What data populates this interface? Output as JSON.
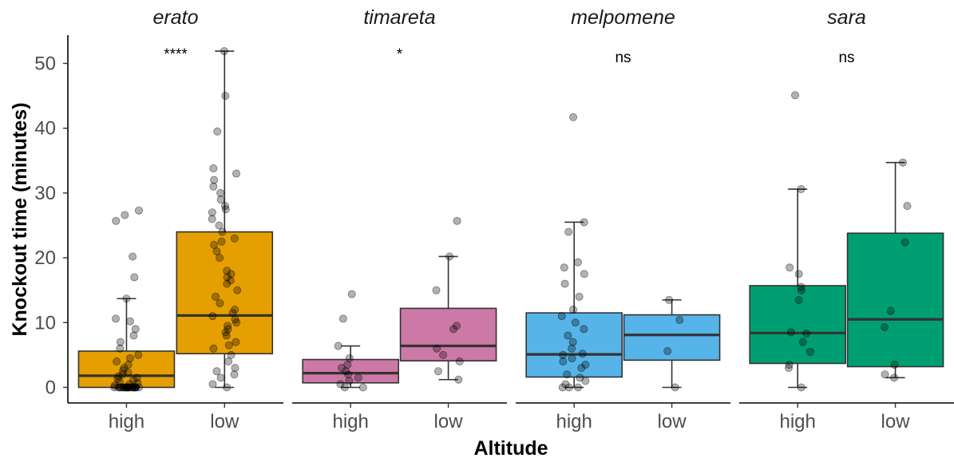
{
  "chart_data": {
    "type": "boxplot",
    "xlabel": "Altitude",
    "ylabel": "Knockout time (minutes)",
    "ylim": [
      -2.5,
      54
    ],
    "yticks": [
      0,
      10,
      20,
      30,
      40,
      50
    ],
    "categories": [
      "high",
      "low"
    ],
    "grid": false,
    "legend": "none",
    "panels": [
      {
        "title": "erato",
        "significance": "****",
        "boxes": [
          {
            "category": "high",
            "color": "#E69F00",
            "min": 0,
            "q1": 0,
            "median": 1.8,
            "q3": 5.6,
            "max": 13.7,
            "points": [
              0,
              0,
              0,
              0,
              0,
              0,
              0,
              0,
              0,
              0,
              0,
              0,
              0,
              0,
              0,
              0,
              0,
              0,
              0,
              0,
              0,
              0,
              0.3,
              0.5,
              0.7,
              0.9,
              1.1,
              1.3,
              1.5,
              1.7,
              2,
              2.3,
              2.6,
              3,
              3.5,
              4,
              4.5,
              5,
              6,
              7,
              8,
              9,
              10.2,
              10.6,
              13.7,
              17,
              20.2,
              25.7,
              26.6,
              27.3
            ]
          },
          {
            "category": "low",
            "color": "#E69F00",
            "min": 0,
            "q1": 5.2,
            "median": 11.1,
            "q3": 24,
            "max": 51.9,
            "points": [
              0,
              0.5,
              1.5,
              2,
              2.5,
              3,
              4,
              5,
              6,
              6.5,
              7,
              8,
              8.5,
              9,
              9.5,
              10,
              10.5,
              11,
              11.5,
              12,
              13,
              14,
              15,
              16,
              16.5,
              17,
              17.5,
              18,
              20,
              21,
              22,
              22.5,
              23,
              24,
              25,
              26,
              27,
              27.5,
              28,
              29,
              30,
              31,
              32,
              33,
              33.8,
              39.5,
              45,
              51.9
            ]
          }
        ]
      },
      {
        "title": "timareta",
        "significance": "*",
        "boxes": [
          {
            "category": "high",
            "color": "#CC79A7",
            "min": 0,
            "q1": 0.7,
            "median": 2.2,
            "q3": 4.3,
            "max": 6.4,
            "points": [
              0,
              0,
              0.5,
              1,
              1.5,
              2,
              2.5,
              3,
              3.5,
              4.5,
              6.4,
              10.6,
              14.4
            ]
          },
          {
            "category": "low",
            "color": "#CC79A7",
            "min": 1.2,
            "q1": 4.1,
            "median": 6.4,
            "q3": 12.2,
            "max": 20.2,
            "points": [
              1.2,
              2.5,
              4,
              5,
              6,
              9,
              9.5,
              15,
              20.2,
              25.7
            ]
          }
        ]
      },
      {
        "title": "melpomene",
        "significance": "ns",
        "boxes": [
          {
            "category": "high",
            "color": "#56B4E9",
            "min": 0,
            "q1": 1.6,
            "median": 5.1,
            "q3": 11.5,
            "max": 25.5,
            "points": [
              0,
              0,
              0,
              0.5,
              1,
              1.5,
              2,
              3,
              3.5,
              4,
              4.5,
              5,
              5.2,
              6,
              7,
              8,
              9,
              10,
              11,
              12,
              14,
              16,
              17.5,
              18.5,
              19.3,
              24,
              25.5,
              41.7
            ]
          },
          {
            "category": "low",
            "color": "#56B4E9",
            "min": 0,
            "q1": 4.2,
            "median": 8.1,
            "q3": 11.2,
            "max": 13.5,
            "points": [
              0,
              5.6,
              10.4,
              13.5
            ]
          }
        ]
      },
      {
        "title": "sara",
        "significance": "ns",
        "boxes": [
          {
            "category": "high",
            "color": "#009E73",
            "min": 0,
            "q1": 3.7,
            "median": 8.4,
            "q3": 15.7,
            "max": 30.6,
            "points": [
              0,
              3,
              3.5,
              5.5,
              7,
              8.3,
              8.5,
              13.5,
              15,
              15.5,
              17.5,
              18.5,
              30.6,
              45.1
            ]
          },
          {
            "category": "low",
            "color": "#009E73",
            "min": 1.5,
            "q1": 3.2,
            "median": 10.5,
            "q3": 23.8,
            "max": 34.7,
            "points": [
              1.5,
              2,
              3.5,
              9.3,
              11.8,
              22.4,
              28,
              34.7
            ]
          }
        ]
      }
    ]
  }
}
